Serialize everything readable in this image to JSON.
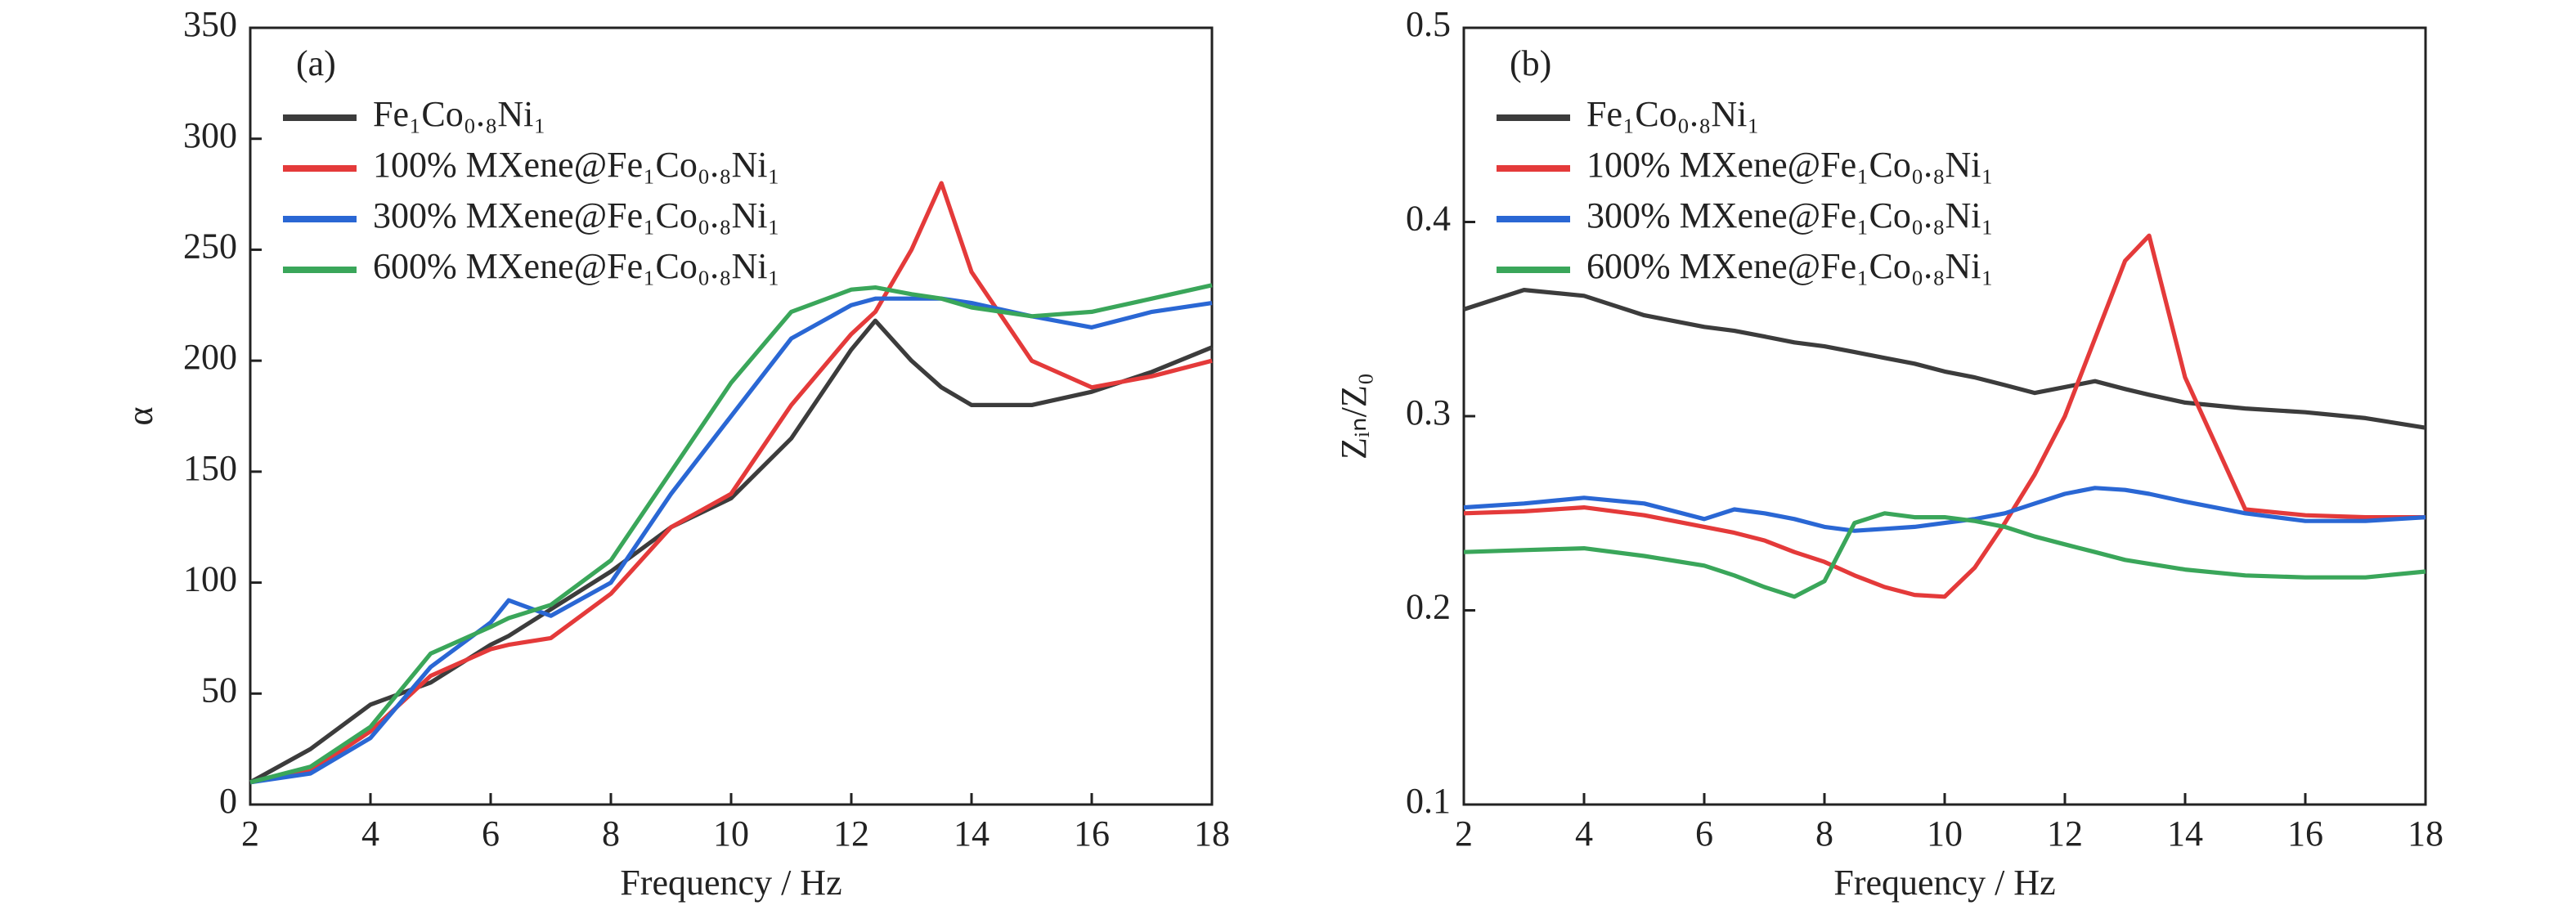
{
  "chart_data": [
    {
      "type": "line",
      "annotation": "(a)",
      "ylabel": "α",
      "xlabel": "Frequency / Hz",
      "x": [
        2,
        3,
        4,
        5,
        6,
        6.3,
        7,
        8,
        9,
        10,
        11,
        12,
        12.4,
        13,
        13.5,
        14,
        15,
        16,
        17,
        18
      ],
      "xlim": [
        2,
        18
      ],
      "xticks": [
        2,
        4,
        6,
        8,
        10,
        12,
        14,
        16,
        18
      ],
      "ylim": [
        0,
        350
      ],
      "yticks": [
        0,
        50,
        100,
        150,
        200,
        250,
        300,
        350
      ],
      "series": [
        {
          "name": "Fe₁Co₀.₈Ni₁",
          "color": "#3c3c3c",
          "values": [
            10,
            25,
            45,
            55,
            72,
            76,
            88,
            105,
            125,
            138,
            165,
            205,
            218,
            200,
            188,
            180,
            180,
            186,
            195,
            206
          ]
        },
        {
          "name": "100% MXene@Fe₁Co₀.₈Ni₁",
          "color": "#e43a3a",
          "values": [
            10,
            15,
            33,
            58,
            70,
            72,
            75,
            95,
            125,
            140,
            180,
            212,
            222,
            250,
            280,
            240,
            200,
            188,
            193,
            200
          ]
        },
        {
          "name": "300% MXene@Fe₁Co₀.₈Ni₁",
          "color": "#2a67d4",
          "values": [
            10,
            14,
            30,
            62,
            82,
            92,
            85,
            100,
            140,
            175,
            210,
            225,
            228,
            228,
            228,
            226,
            220,
            215,
            222,
            226
          ]
        },
        {
          "name": "600% MXene@Fe₁Co₀.₈Ni₁",
          "color": "#3aa65a",
          "values": [
            10,
            17,
            35,
            68,
            80,
            84,
            90,
            110,
            150,
            190,
            222,
            232,
            233,
            230,
            228,
            224,
            220,
            222,
            228,
            234
          ]
        }
      ]
    },
    {
      "type": "line",
      "annotation": "(b)",
      "ylabel": "Zᵢₙ/Z₀",
      "xlabel": "Frequency / Hz",
      "x": [
        2,
        3,
        4,
        5,
        6,
        6.5,
        7,
        7.5,
        8,
        8.5,
        9,
        9.5,
        10,
        10.5,
        11,
        11.5,
        12,
        12.5,
        13,
        13.4,
        14,
        15,
        16,
        17,
        18
      ],
      "xlim": [
        2,
        18
      ],
      "xticks": [
        2,
        4,
        6,
        8,
        10,
        12,
        14,
        16,
        18
      ],
      "ylim": [
        0.1,
        0.5
      ],
      "yticks": [
        0.1,
        0.2,
        0.3,
        0.4,
        0.5
      ],
      "series": [
        {
          "name": "Fe₁Co₀.₈Ni₁",
          "color": "#3c3c3c",
          "values": [
            0.355,
            0.365,
            0.362,
            0.352,
            0.346,
            0.344,
            0.341,
            0.338,
            0.336,
            0.333,
            0.33,
            0.327,
            0.323,
            0.32,
            0.316,
            0.312,
            0.315,
            0.318,
            0.314,
            0.311,
            0.307,
            0.304,
            0.302,
            0.299,
            0.294
          ]
        },
        {
          "name": "100% MXene@Fe₁Co₀.₈Ni₁",
          "color": "#e43a3a",
          "values": [
            0.25,
            0.251,
            0.253,
            0.249,
            0.243,
            0.24,
            0.236,
            0.23,
            0.225,
            0.218,
            0.212,
            0.208,
            0.207,
            0.222,
            0.245,
            0.27,
            0.3,
            0.34,
            0.38,
            0.393,
            0.32,
            0.252,
            0.249,
            0.248,
            0.248
          ]
        },
        {
          "name": "300% MXene@Fe₁Co₀.₈Ni₁",
          "color": "#2a67d4",
          "values": [
            0.253,
            0.255,
            0.258,
            0.255,
            0.247,
            0.252,
            0.25,
            0.247,
            0.243,
            0.241,
            0.242,
            0.243,
            0.245,
            0.247,
            0.25,
            0.255,
            0.26,
            0.263,
            0.262,
            0.26,
            0.256,
            0.25,
            0.246,
            0.246,
            0.248
          ]
        },
        {
          "name": "600% MXene@Fe₁Co₀.₈Ni₁",
          "color": "#3aa65a",
          "values": [
            0.23,
            0.231,
            0.232,
            0.228,
            0.223,
            0.218,
            0.212,
            0.207,
            0.215,
            0.245,
            0.25,
            0.248,
            0.248,
            0.246,
            0.243,
            0.238,
            0.234,
            0.23,
            0.226,
            0.224,
            0.221,
            0.218,
            0.217,
            0.217,
            0.22
          ]
        }
      ]
    }
  ]
}
